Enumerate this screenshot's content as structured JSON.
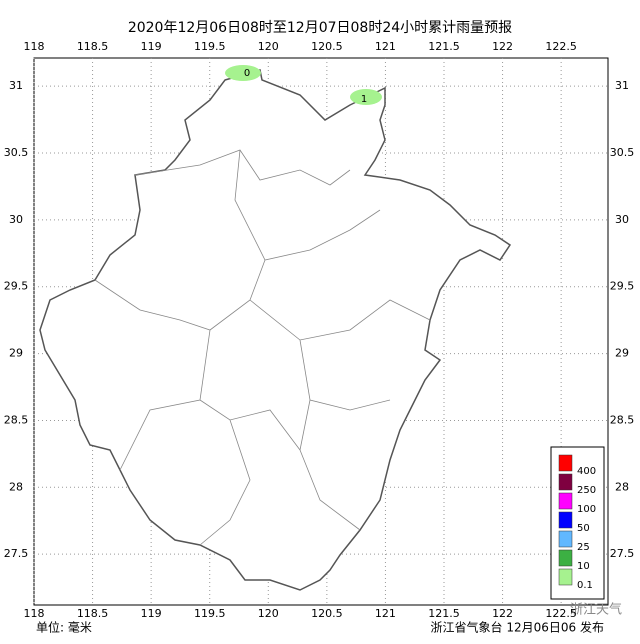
{
  "title": "2020年12月06日08时至12月07日08时24小时累计雨量预报",
  "map": {
    "xlim": [
      118,
      122.9
    ],
    "ylim": [
      27.12,
      31.21
    ],
    "xticks": [
      118,
      118.5,
      119,
      119.5,
      120,
      120.5,
      121,
      121.5,
      122,
      122.5
    ],
    "yticks": [
      27.5,
      28,
      28.5,
      29,
      29.5,
      30,
      30.5,
      31
    ],
    "grid": true,
    "rain_labels": [
      0,
      1
    ],
    "legend": [
      {
        "label": 400,
        "color": "#ff0000"
      },
      {
        "label": 250,
        "color": "#7f0040"
      },
      {
        "label": 100,
        "color": "#ff00ff"
      },
      {
        "label": 50,
        "color": "#0000ff"
      },
      {
        "label": 25,
        "color": "#61b8ff"
      },
      {
        "label": 10,
        "color": "#3cb043"
      },
      {
        "label": 0.1,
        "color": "#a6f28f"
      }
    ]
  },
  "footer": {
    "unit": "单位: 毫米",
    "issuer": "浙江省气象台 12月06日06 发布",
    "watermark": "浙江天气"
  }
}
